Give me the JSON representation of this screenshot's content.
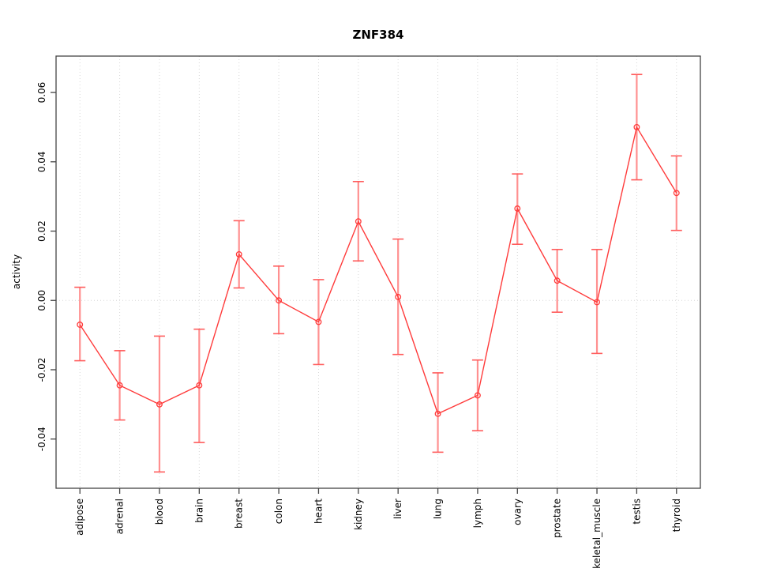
{
  "figure": {
    "title": "ZNF384"
  },
  "chart_data": {
    "type": "line",
    "title": "ZNF384",
    "xlabel": "",
    "ylabel": "activity",
    "legend": "none",
    "grid": "dotted vertical gridline at each category; dotted horizontal line at y=0",
    "categories": [
      "adipose",
      "adrenal",
      "blood",
      "brain",
      "breast",
      "colon",
      "heart",
      "kidney",
      "liver",
      "lung",
      "lymph",
      "ovary",
      "prostate",
      "skeletal_muscle",
      "testis",
      "thyroid"
    ],
    "series": [
      {
        "name": "activity",
        "marker": "open-circle",
        "values": [
          -0.007,
          -0.0245,
          -0.03,
          -0.0245,
          0.0133,
          0.0,
          -0.0062,
          0.0228,
          0.001,
          -0.0327,
          -0.0274,
          0.0265,
          0.0057,
          -0.0005,
          0.05,
          0.031
        ],
        "error_upper": [
          0.0038,
          -0.0145,
          -0.0103,
          -0.0083,
          0.023,
          0.0099,
          0.006,
          0.0343,
          0.0177,
          -0.0209,
          -0.0172,
          0.0365,
          0.0147,
          0.0147,
          0.0652,
          0.0417
        ],
        "error_lower": [
          -0.0174,
          -0.0345,
          -0.0495,
          -0.041,
          0.0036,
          -0.0096,
          -0.0185,
          0.0114,
          -0.0156,
          -0.0438,
          -0.0376,
          0.0162,
          -0.0034,
          -0.0153,
          0.0348,
          0.0202
        ]
      }
    ],
    "ylim": [
      -0.0542,
      0.0705
    ],
    "yticks": [
      -0.04,
      -0.02,
      0.0,
      0.02,
      0.04,
      0.06
    ],
    "ytick_labels": [
      "-0.04",
      "-0.02",
      "0.00",
      "0.02",
      "0.04",
      "0.06"
    ],
    "colors": {
      "series": "#ff3b3b",
      "error_stem": "#ff9090",
      "error_cap": "#ff5c5c",
      "grid": "#d6d6d6",
      "axis": "#444444",
      "text": "#000000",
      "background": "#ffffff"
    }
  }
}
